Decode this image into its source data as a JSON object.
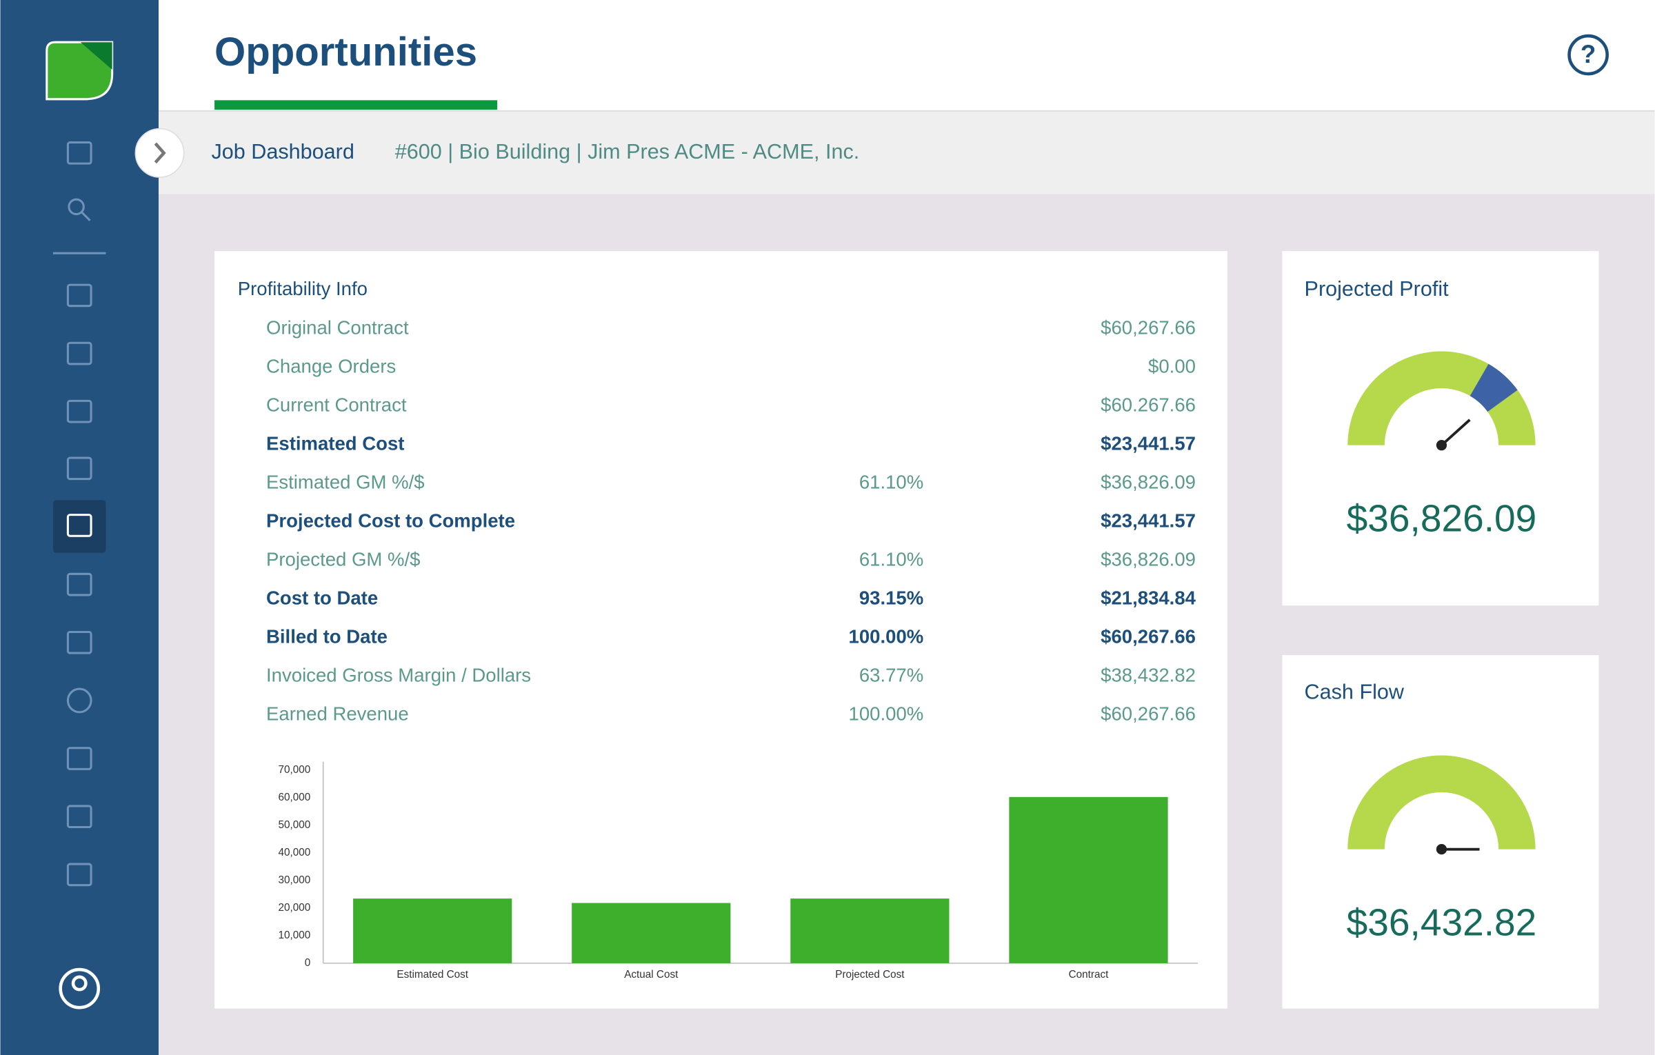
{
  "header": {
    "title": "Opportunities"
  },
  "breadcrumb": {
    "section": "Job Dashboard",
    "job": "#600 | Bio Building | Jim Pres ACME - ACME, Inc."
  },
  "profitability": {
    "title": "Profitability Info",
    "rows": [
      {
        "label": "Original Contract",
        "amount": "$60,267.66"
      },
      {
        "label": "Change Orders",
        "amount": "$0.00"
      },
      {
        "label": "Current Contract",
        "amount": "$60.267.66"
      },
      {
        "label": "Estimated Cost",
        "amount": "$23,441.57"
      },
      {
        "label": "Estimated GM %/$",
        "percent": "61.10%",
        "amount": "$36,826.09"
      },
      {
        "label": "Projected Cost to Complete",
        "amount": "$23,441.57"
      },
      {
        "label": "Projected GM %/$",
        "percent": "61.10%",
        "amount": "$36,826.09"
      },
      {
        "label": "Cost to Date",
        "percent": "93.15%",
        "amount": "$21,834.84"
      },
      {
        "label": "Billed to Date",
        "percent": "100.00%",
        "amount": "$60,267.66"
      },
      {
        "label": "Invoiced Gross Margin / Dollars",
        "percent": "63.77%",
        "amount": "$38,432.82"
      },
      {
        "label": "Earned Revenue",
        "percent": "100.00%",
        "amount": "$60,267.66"
      }
    ]
  },
  "chart_data": {
    "type": "bar",
    "categories": [
      "Estimated Cost",
      "Actual Cost",
      "Projected Cost",
      "Contract"
    ],
    "values": [
      23441.57,
      21834.84,
      23441.57,
      60267.66
    ],
    "color": "#3daf2c",
    "ylim": [
      0,
      70000
    ],
    "yticks": [
      0,
      {
        "value": 10000,
        "label": "10,000"
      },
      {
        "value": 20000,
        "label": "20,000"
      },
      {
        "value": 30000,
        "label": "30,000"
      },
      {
        "value": 40000,
        "label": "40,000"
      },
      {
        "value": 50000,
        "label": "50,000"
      },
      {
        "value": 60000,
        "label": "60,000"
      },
      {
        "value": 70000,
        "label": "70,000"
      }
    ]
  },
  "cards": [
    {
      "title": "Projected Profit",
      "value": "$36,826.09"
    },
    {
      "title": "Cash Flow",
      "value": "$36,432.82"
    }
  ]
}
